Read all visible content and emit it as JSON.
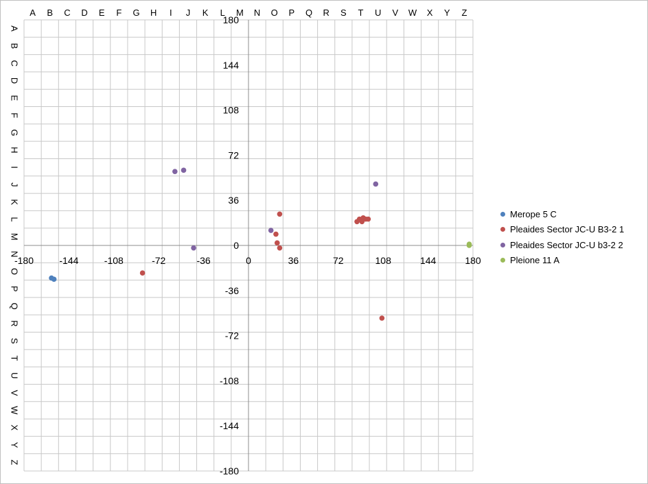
{
  "chart_data": {
    "type": "scatter",
    "title": "",
    "xlabel": "",
    "ylabel": "",
    "xlim": [
      -180,
      180
    ],
    "ylim": [
      -180,
      180
    ],
    "x_ticks": [
      -180,
      -144,
      -108,
      -72,
      -36,
      0,
      36,
      72,
      108,
      144,
      180
    ],
    "y_ticks": [
      180,
      144,
      108,
      72,
      36,
      0,
      -36,
      -72,
      -108,
      -144,
      -180
    ],
    "x_tick_labels": [
      "-180",
      "-144",
      "-108",
      "-72",
      "-36",
      "0",
      "36",
      "72",
      "108",
      "144",
      "180"
    ],
    "y_tick_labels": [
      "180",
      "144",
      "108",
      "72",
      "36",
      "0",
      "-36",
      "-72",
      "-108",
      "-144",
      "-180"
    ],
    "grid": true,
    "grid_letters": [
      "A",
      "B",
      "C",
      "D",
      "E",
      "F",
      "G",
      "H",
      "I",
      "J",
      "K",
      "L",
      "M",
      "N",
      "O",
      "P",
      "Q",
      "R",
      "S",
      "T",
      "U",
      "V",
      "W",
      "X",
      "Y",
      "Z"
    ],
    "legend_position": "right",
    "series": [
      {
        "name": "Merope 5 C",
        "color": "#4f81bd",
        "points": [
          [
            -158,
            -26
          ],
          [
            -156,
            -27
          ]
        ]
      },
      {
        "name": "Pleaides Sector JC-U B3-2 1",
        "color": "#c0504d",
        "points": [
          [
            -85,
            -22
          ],
          [
            25,
            25
          ],
          [
            22,
            9
          ],
          [
            23,
            2
          ],
          [
            25,
            -2
          ],
          [
            87,
            19
          ],
          [
            89,
            21
          ],
          [
            91,
            19
          ],
          [
            92,
            22
          ],
          [
            94,
            21
          ],
          [
            96,
            21
          ],
          [
            107,
            -58
          ]
        ]
      },
      {
        "name": "Pleaides Sector JC-U b3-2 2",
        "color": "#8064a2",
        "points": [
          [
            -59,
            59
          ],
          [
            -52,
            60
          ],
          [
            -44,
            -2
          ],
          [
            18,
            12
          ],
          [
            102,
            49
          ]
        ]
      },
      {
        "name": "Pleione 11 A",
        "color": "#9bbb59",
        "points": [
          [
            177,
            1
          ],
          [
            177,
            0
          ]
        ]
      }
    ]
  }
}
